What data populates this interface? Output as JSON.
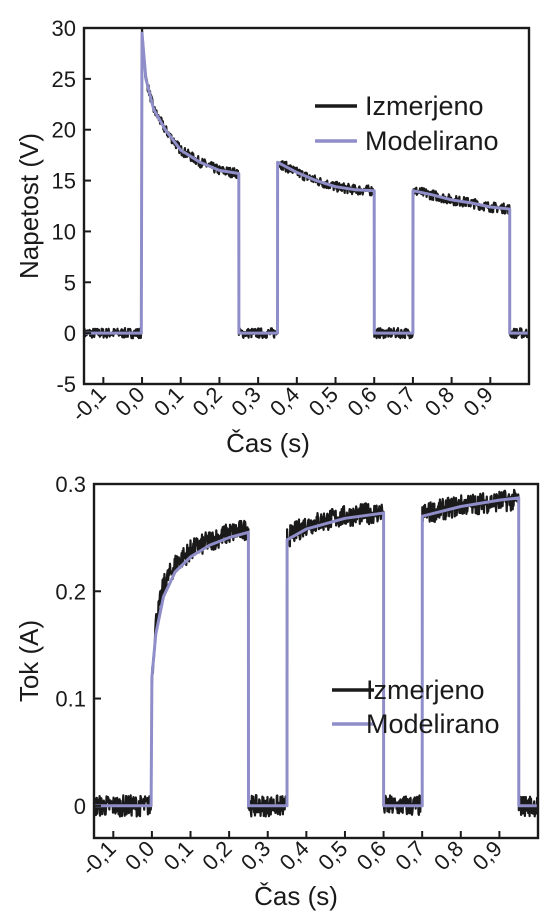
{
  "chart_data": [
    {
      "type": "line",
      "xlabel": "Čas (s)",
      "ylabel": "Napetost (V)",
      "xlim": [
        -0.15,
        1.0
      ],
      "ylim": [
        -5,
        30
      ],
      "xticks": [
        "-0,1",
        "0,0",
        "0,1",
        "0,2",
        "0,3",
        "0,4",
        "0,5",
        "0,6",
        "0,7",
        "0,8",
        "0,9"
      ],
      "xtick_values": [
        -0.1,
        0,
        0.1,
        0.2,
        0.3,
        0.4,
        0.5,
        0.6,
        0.7,
        0.8,
        0.9
      ],
      "yticks": [
        "-5",
        "0",
        "5",
        "10",
        "15",
        "20",
        "25",
        "30"
      ],
      "ytick_values": [
        -5,
        0,
        5,
        10,
        15,
        20,
        25,
        30
      ],
      "legend_position": "top-right",
      "series": [
        {
          "name": "Izmerjeno",
          "color": "#1a1a1a",
          "noise": 0.5,
          "points": [
            [
              -0.15,
              0
            ],
            [
              -0.002,
              0
            ],
            [
              0.0,
              29.5
            ],
            [
              0.01,
              25
            ],
            [
              0.03,
              22
            ],
            [
              0.06,
              20
            ],
            [
              0.1,
              18
            ],
            [
              0.15,
              16.8
            ],
            [
              0.2,
              16
            ],
            [
              0.25,
              15.7
            ],
            [
              0.2502,
              0
            ],
            [
              0.35,
              0
            ],
            [
              0.3502,
              16.8
            ],
            [
              0.4,
              15.8
            ],
            [
              0.45,
              15
            ],
            [
              0.5,
              14.4
            ],
            [
              0.55,
              14.1
            ],
            [
              0.6,
              14
            ],
            [
              0.6002,
              0
            ],
            [
              0.7,
              0
            ],
            [
              0.7002,
              14
            ],
            [
              0.75,
              13.6
            ],
            [
              0.8,
              13.1
            ],
            [
              0.85,
              12.8
            ],
            [
              0.9,
              12.4
            ],
            [
              0.95,
              12.2
            ],
            [
              0.9502,
              0
            ],
            [
              1.0,
              0
            ]
          ]
        },
        {
          "name": "Modelirano",
          "color": "#8f8ec9",
          "noise": 0,
          "points": [
            [
              -0.15,
              0
            ],
            [
              -0.002,
              0
            ],
            [
              0.0,
              29.5
            ],
            [
              0.01,
              25
            ],
            [
              0.03,
              22
            ],
            [
              0.06,
              20
            ],
            [
              0.1,
              18
            ],
            [
              0.15,
              16.8
            ],
            [
              0.2,
              16
            ],
            [
              0.25,
              15.7
            ],
            [
              0.2502,
              0
            ],
            [
              0.35,
              0
            ],
            [
              0.3502,
              16.8
            ],
            [
              0.4,
              15.8
            ],
            [
              0.45,
              15
            ],
            [
              0.5,
              14.4
            ],
            [
              0.55,
              14.1
            ],
            [
              0.6,
              14
            ],
            [
              0.6002,
              0
            ],
            [
              0.7,
              0
            ],
            [
              0.7002,
              14
            ],
            [
              0.75,
              13.6
            ],
            [
              0.8,
              13.1
            ],
            [
              0.85,
              12.8
            ],
            [
              0.9,
              12.4
            ],
            [
              0.95,
              12.2
            ],
            [
              0.9502,
              0
            ],
            [
              1.0,
              0
            ]
          ]
        }
      ]
    },
    {
      "type": "line",
      "xlabel": "Čas (s)",
      "ylabel": "Tok (A)",
      "xlim": [
        -0.15,
        1.0
      ],
      "ylim": [
        -0.03,
        0.3
      ],
      "xticks": [
        "-0,1",
        "0,0",
        "0,1",
        "0,2",
        "0,3",
        "0,4",
        "0,5",
        "0,6",
        "0,7",
        "0,8",
        "0,9"
      ],
      "xtick_values": [
        -0.1,
        0,
        0.1,
        0.2,
        0.3,
        0.4,
        0.5,
        0.6,
        0.7,
        0.8,
        0.9
      ],
      "yticks": [
        "0",
        "0.1",
        "0.2",
        "0.3"
      ],
      "ytick_values": [
        0,
        0.1,
        0.2,
        0.3
      ],
      "legend_position": "center-right",
      "series": [
        {
          "name": "Izmerjeno",
          "color": "#1a1a1a",
          "noise": 0.01,
          "points": [
            [
              -0.15,
              0
            ],
            [
              -0.002,
              0
            ],
            [
              0.0,
              0.12
            ],
            [
              0.01,
              0.17
            ],
            [
              0.03,
              0.205
            ],
            [
              0.06,
              0.225
            ],
            [
              0.1,
              0.238
            ],
            [
              0.15,
              0.247
            ],
            [
              0.2,
              0.254
            ],
            [
              0.25,
              0.258
            ],
            [
              0.2502,
              0
            ],
            [
              0.35,
              0
            ],
            [
              0.3502,
              0.25
            ],
            [
              0.4,
              0.262
            ],
            [
              0.5,
              0.27
            ],
            [
              0.6,
              0.274
            ],
            [
              0.6002,
              0
            ],
            [
              0.7,
              0
            ],
            [
              0.7002,
              0.272
            ],
            [
              0.8,
              0.28
            ],
            [
              0.9,
              0.284
            ],
            [
              0.95,
              0.285
            ],
            [
              0.9502,
              0
            ],
            [
              1.0,
              0
            ]
          ]
        },
        {
          "name": "Modelirano",
          "color": "#8f8ec9",
          "noise": 0,
          "points": [
            [
              -0.15,
              0
            ],
            [
              -0.002,
              0
            ],
            [
              0.0,
              0.12
            ],
            [
              0.01,
              0.16
            ],
            [
              0.03,
              0.195
            ],
            [
              0.06,
              0.218
            ],
            [
              0.1,
              0.232
            ],
            [
              0.15,
              0.243
            ],
            [
              0.2,
              0.25
            ],
            [
              0.25,
              0.255
            ],
            [
              0.2502,
              0
            ],
            [
              0.35,
              0
            ],
            [
              0.3502,
              0.248
            ],
            [
              0.4,
              0.258
            ],
            [
              0.5,
              0.268
            ],
            [
              0.6,
              0.273
            ],
            [
              0.6002,
              0
            ],
            [
              0.7,
              0
            ],
            [
              0.7002,
              0.27
            ],
            [
              0.8,
              0.279
            ],
            [
              0.9,
              0.285
            ],
            [
              0.95,
              0.287
            ],
            [
              0.9502,
              0
            ],
            [
              1.0,
              0
            ]
          ]
        }
      ]
    }
  ]
}
